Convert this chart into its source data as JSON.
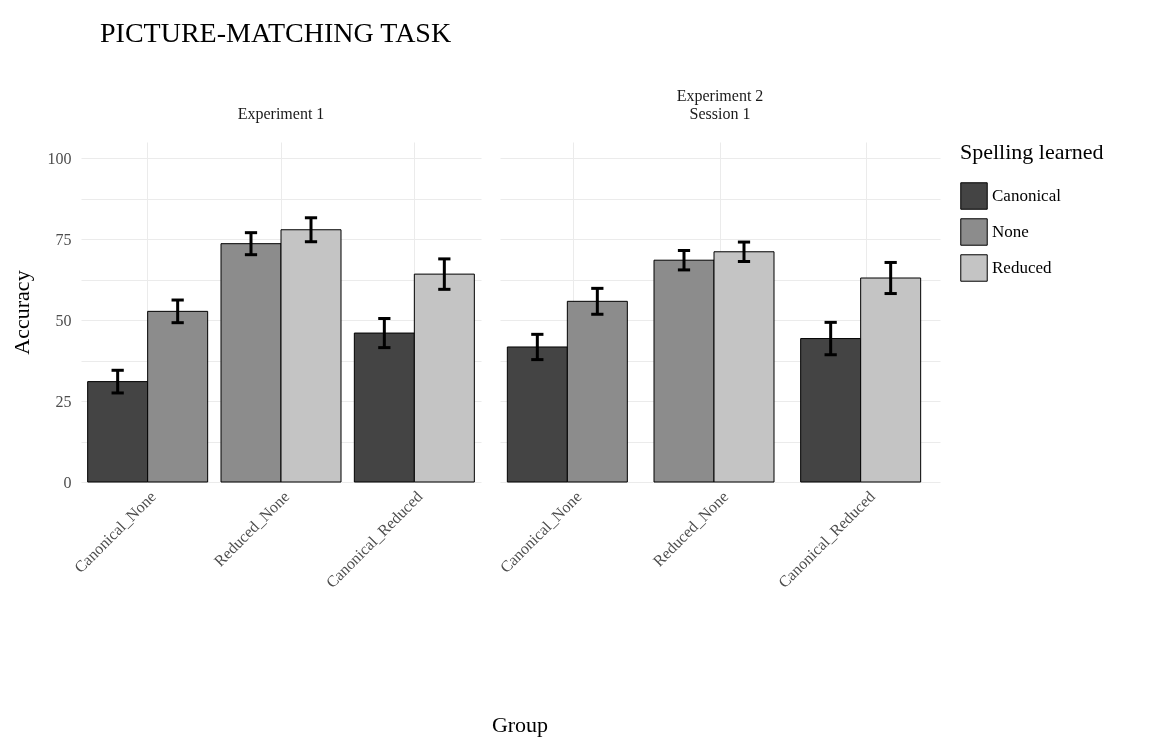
{
  "chart_data": [
    {
      "type": "bar",
      "title": "PICTURE-MATCHING TASK",
      "subtitle": "Experiment 1",
      "xlabel": "Group",
      "ylabel": "Accuracy",
      "categories": [
        "Canonical_None",
        "Reduced_None",
        "Canonical_Reduced"
      ],
      "series": [
        {
          "name": "Canonical",
          "color": "#444444",
          "values": [
            31.0,
            null,
            46.0
          ],
          "errors": [
            3.5,
            null,
            4.5
          ]
        },
        {
          "name": "None",
          "color": "#8c8c8c",
          "values": [
            52.7,
            73.6,
            null
          ],
          "errors": [
            3.5,
            3.4,
            null
          ]
        },
        {
          "name": "Reduced",
          "color": "#c4c4c4",
          "values": [
            null,
            77.9,
            64.2
          ],
          "errors": [
            null,
            3.7,
            4.7
          ]
        }
      ],
      "ylim": [
        0,
        105
      ],
      "yticks": [
        0,
        {
          "value": 12.5,
          "label": null
        },
        25,
        {
          "value": 37.5,
          "label": null
        },
        50,
        {
          "value": 62.5,
          "label": null
        },
        75,
        {
          "value": 87.5,
          "label": null
        },
        100
      ],
      "grid": true,
      "legend": "right"
    },
    {
      "type": "bar",
      "subtitle": "Experiment 2\nSession 1",
      "legend_title": "Spelling learned",
      "categories": [
        "Canonical_None",
        "Reduced_None",
        "Canonical_Reduced"
      ],
      "series": [
        {
          "name": "Canonical",
          "color": "#444444",
          "values": [
            41.7,
            null,
            44.3
          ],
          "errors": [
            3.9,
            null,
            5.0
          ]
        },
        {
          "name": "None",
          "color": "#8c8c8c",
          "values": [
            55.8,
            68.5,
            null
          ],
          "errors": [
            4.0,
            3.0,
            null
          ]
        },
        {
          "name": "Reduced",
          "color": "#c4c4c4",
          "values": [
            null,
            71.1,
            63.0
          ],
          "errors": [
            null,
            3.0,
            4.8
          ]
        }
      ],
      "ylim": [
        0,
        105
      ],
      "yticks": [
        0,
        {
          "value": 12.5,
          "label": null
        },
        25,
        {
          "value": 37.5,
          "label": null
        },
        50,
        {
          "value": 62.5,
          "label": null
        },
        75,
        {
          "value": 87.5,
          "label": null
        },
        100
      ],
      "grid": true,
      "legend": "right",
      "tick_labels": "x"
    }
  ]
}
